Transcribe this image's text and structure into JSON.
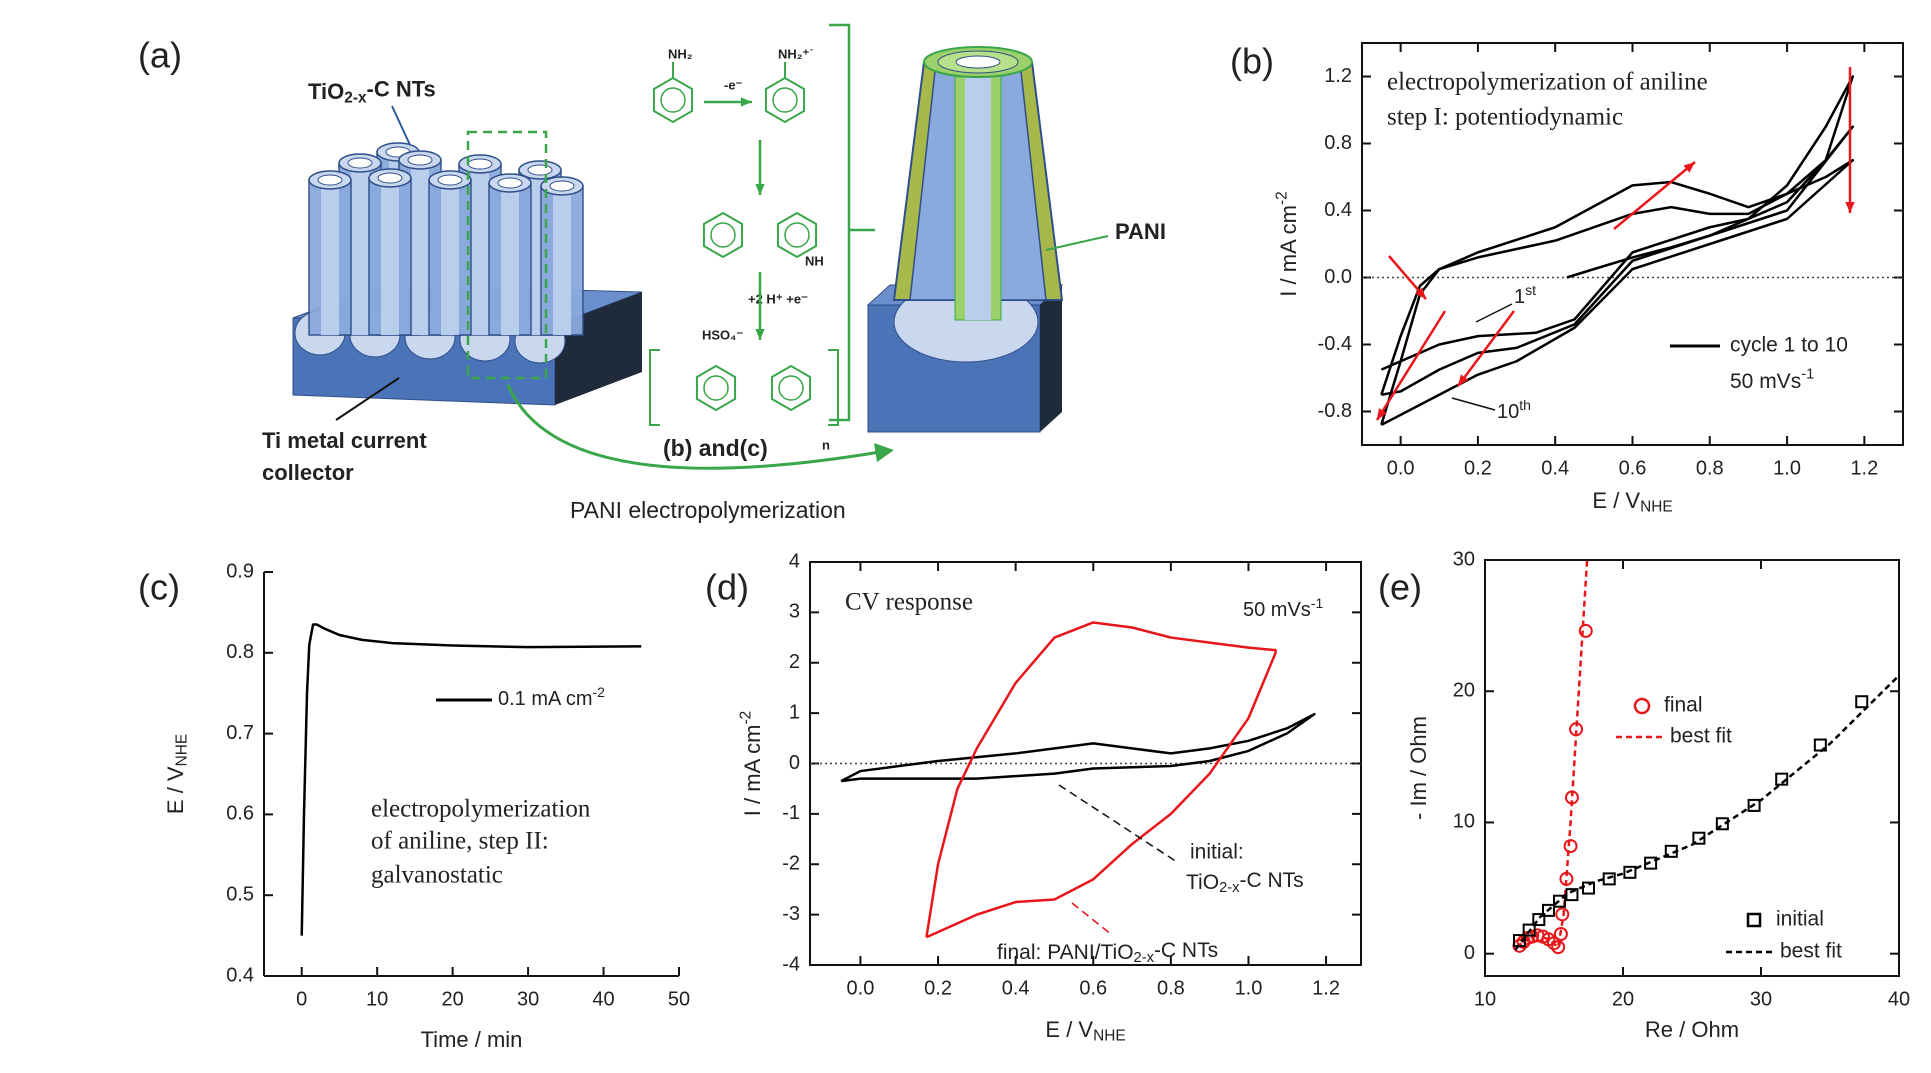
{
  "panel_labels": [
    "(a)",
    "(b)",
    "(c)",
    "(d)",
    "(e)"
  ],
  "diagram": {
    "nanotube_label": {
      "main": "TiO",
      "sub": "2-x",
      "tail": "-C NTs"
    },
    "collector_label": [
      "Ti metal current",
      "collector"
    ],
    "pani_label": "PANI",
    "panels_ref": "(b) and(c)",
    "process_label": "PANI electropolymerization",
    "chem": {
      "aniline": "NH₂",
      "radical": "NH₂⁺˙",
      "oxidation": "-e⁻",
      "imine": "NH",
      "step": "+2 H⁺ +e⁻",
      "counterion": "HSO₄⁻",
      "repeat": "n"
    }
  },
  "chart_data": [
    {
      "type": "line",
      "annotations": [
        "electropolymerization of aniline",
        "step I: potentiodynamic"
      ],
      "cycle_labels": [
        {
          "main": "1",
          "sup": "st"
        },
        {
          "main": "10",
          "sup": "th"
        }
      ],
      "scan_rate": {
        "main": "50 mVs",
        "sup": "-1"
      },
      "x_label": {
        "main": "E / V",
        "sub": "NHE"
      },
      "y_label": {
        "main": "I / mA cm",
        "sup": "-2"
      },
      "xlim": [
        -0.1,
        1.3
      ],
      "ylim": [
        -1.0,
        1.4
      ],
      "xticks": [
        {
          "value": 0,
          "label": "0.0"
        },
        0.2,
        0.4,
        0.6,
        0.8,
        {
          "value": 1,
          "label": "1.0"
        },
        1.2
      ],
      "yticks": [
        -0.8,
        -0.4,
        {
          "value": 0,
          "label": "0.0"
        },
        0.4,
        0.8,
        1.2
      ],
      "zero_line": true,
      "frame": true,
      "series": [
        {
          "name": "cycle 1 to 10",
          "color": "#000000",
          "cycles": [
            {
              "x": [
                0.43,
                0.5,
                0.6,
                0.7,
                0.8,
                0.9,
                1.0,
                1.1,
                1.17,
                1.1,
                1.0,
                0.9,
                0.8,
                0.6,
                0.45,
                0.35,
                0.2,
                0.1,
                0.0,
                -0.05
              ],
              "y": [
                0.0,
                0.05,
                0.12,
                0.18,
                0.25,
                0.35,
                0.55,
                0.9,
                1.2,
                0.7,
                0.45,
                0.35,
                0.3,
                0.15,
                -0.25,
                -0.33,
                -0.35,
                -0.4,
                -0.5,
                -0.55
              ]
            },
            {
              "x": [
                -0.05,
                0.0,
                0.05,
                0.1,
                0.2,
                0.4,
                0.6,
                0.7,
                0.8,
                0.9,
                1.0,
                1.1,
                1.17,
                1.0,
                0.8,
                0.6,
                0.45,
                0.3,
                0.2,
                0.1,
                0.0,
                -0.05
              ],
              "y": [
                -0.7,
                -0.35,
                -0.05,
                0.05,
                0.12,
                0.22,
                0.38,
                0.42,
                0.38,
                0.38,
                0.5,
                0.7,
                0.9,
                0.4,
                0.25,
                0.1,
                -0.28,
                -0.42,
                -0.45,
                -0.55,
                -0.68,
                -0.7
              ]
            },
            {
              "x": [
                -0.05,
                0.0,
                0.05,
                0.1,
                0.2,
                0.4,
                0.6,
                0.7,
                0.8,
                0.9,
                1.0,
                1.1,
                1.17,
                1.0,
                0.8,
                0.6,
                0.45,
                0.3,
                0.2,
                0.1,
                0.0,
                -0.05
              ],
              "y": [
                -0.88,
                -0.5,
                -0.1,
                0.05,
                0.15,
                0.3,
                0.55,
                0.57,
                0.5,
                0.42,
                0.5,
                0.6,
                0.7,
                0.35,
                0.2,
                0.05,
                -0.3,
                -0.5,
                -0.58,
                -0.7,
                -0.82,
                -0.88
              ]
            }
          ]
        }
      ]
    },
    {
      "type": "line",
      "annotations": [
        "electropolymerization",
        "of aniline, step II:",
        "galvanostatic"
      ],
      "x_label": "Time / min",
      "y_label": {
        "main": "E / V",
        "sub": "NHE"
      },
      "xlim": [
        -5,
        50
      ],
      "ylim": [
        0.4,
        0.9
      ],
      "xticks": [
        0,
        10,
        20,
        30,
        40,
        50
      ],
      "yticks": [
        0.4,
        0.5,
        0.6,
        0.7,
        0.8,
        0.9
      ],
      "frame": false,
      "series": [
        {
          "name": {
            "main": "0.1 mA cm",
            "sup": "-2"
          },
          "color": "#000000",
          "x": [
            0,
            0.3,
            0.7,
            1,
            1.5,
            2,
            3,
            5,
            8,
            12,
            20,
            30,
            45
          ],
          "y": [
            0.45,
            0.6,
            0.75,
            0.81,
            0.835,
            0.835,
            0.83,
            0.822,
            0.816,
            0.812,
            0.809,
            0.807,
            0.808
          ]
        }
      ]
    },
    {
      "type": "line",
      "annotations": [
        "CV response"
      ],
      "scan_rate": {
        "main": "50 mVs",
        "sup": "-1"
      },
      "curve_labels": [
        "initial:",
        {
          "main": "TiO",
          "sub": "2-x",
          "tail": "-C NTs"
        },
        {
          "main": "final: PANI/TiO",
          "sub": "2-x",
          "tail": "-C NTs"
        }
      ],
      "x_label": {
        "main": "E / V",
        "sub": "NHE"
      },
      "y_label": {
        "main": "I / mA cm",
        "sup": "-2"
      },
      "xlim": [
        -0.13,
        1.29
      ],
      "ylim": [
        -4,
        4
      ],
      "xticks": [
        {
          "value": 0,
          "label": "0.0"
        },
        0.2,
        0.4,
        0.6,
        0.8,
        {
          "value": 1,
          "label": "1.0"
        },
        1.2
      ],
      "yticks": [
        -4,
        -3,
        -2,
        -1,
        0,
        1,
        2,
        3,
        4
      ],
      "zero_line": true,
      "frame": true,
      "series": [
        {
          "color": "#000000",
          "x": [
            -0.05,
            0.0,
            0.1,
            0.2,
            0.4,
            0.6,
            0.7,
            0.8,
            0.9,
            1.0,
            1.1,
            1.17,
            1.1,
            1.0,
            0.9,
            0.8,
            0.6,
            0.5,
            0.3,
            0.1,
            0.0,
            -0.05
          ],
          "y": [
            -0.35,
            -0.15,
            -0.05,
            0.05,
            0.2,
            0.4,
            0.3,
            0.2,
            0.3,
            0.45,
            0.7,
            0.98,
            0.6,
            0.25,
            0.05,
            -0.05,
            -0.1,
            -0.2,
            -0.3,
            -0.3,
            -0.3,
            -0.35
          ]
        },
        {
          "color": "#e8161b",
          "x": [
            0.17,
            0.2,
            0.25,
            0.3,
            0.4,
            0.5,
            0.6,
            0.7,
            0.8,
            0.9,
            1.0,
            1.07,
            1.07,
            1.0,
            0.9,
            0.8,
            0.7,
            0.6,
            0.5,
            0.4,
            0.3,
            0.17
          ],
          "y": [
            -3.45,
            -2.0,
            -0.5,
            0.3,
            1.6,
            2.5,
            2.8,
            2.7,
            2.5,
            2.4,
            2.3,
            2.25,
            2.2,
            0.9,
            -0.2,
            -1.0,
            -1.6,
            -2.3,
            -2.7,
            -2.75,
            -3.0,
            -3.45
          ]
        }
      ]
    },
    {
      "type": "scatter",
      "x_label": "Re / Ohm",
      "y_label": "- Im / Ohm",
      "xlim": [
        10,
        40
      ],
      "ylim": [
        -1.7,
        30
      ],
      "xticks": [
        10,
        20,
        30,
        40
      ],
      "yticks": [
        0,
        10,
        20,
        30
      ],
      "frame": true,
      "series": [
        {
          "name": "final",
          "color": "#e8161b",
          "marker": "circle",
          "x": [
            12.5,
            12.8,
            13.1,
            13.4,
            13.8,
            14.2,
            14.6,
            15.0,
            15.3,
            15.5,
            15.6,
            15.9,
            16.2,
            16.3,
            16.6,
            17.3
          ],
          "y": [
            0.6,
            0.9,
            1.2,
            1.3,
            1.4,
            1.3,
            1.1,
            0.8,
            0.5,
            1.5,
            3.0,
            5.7,
            8.2,
            11.9,
            17.1,
            24.6
          ]
        },
        {
          "name": "best fit",
          "color": "#e8161b",
          "line": "dashed",
          "x": [
            12.3,
            13.0,
            13.8,
            14.6,
            15.3,
            15.7,
            16.2,
            16.8,
            17.4
          ],
          "y": [
            0.5,
            1.1,
            1.4,
            1.1,
            0.5,
            3.0,
            10.0,
            20.0,
            30.0
          ]
        },
        {
          "name": "initial",
          "color": "#000000",
          "marker": "square",
          "x": [
            12.5,
            13.2,
            13.9,
            14.6,
            15.4,
            16.3,
            17.5,
            19.0,
            20.5,
            22.0,
            23.5,
            25.5,
            27.2,
            29.5,
            31.5,
            34.3,
            37.3
          ],
          "y": [
            1.0,
            1.8,
            2.6,
            3.3,
            4.0,
            4.5,
            5.0,
            5.7,
            6.2,
            6.9,
            7.8,
            8.8,
            9.9,
            11.3,
            13.3,
            15.9,
            19.2
          ]
        },
        {
          "name": "best fit",
          "color": "#000000",
          "line": "dashed",
          "x": [
            12.2,
            14,
            16,
            18,
            20,
            25,
            30,
            35,
            40
          ],
          "y": [
            0.3,
            2.8,
            4.6,
            5.5,
            6.1,
            8.3,
            11.7,
            16.0,
            21.2
          ]
        }
      ]
    }
  ]
}
